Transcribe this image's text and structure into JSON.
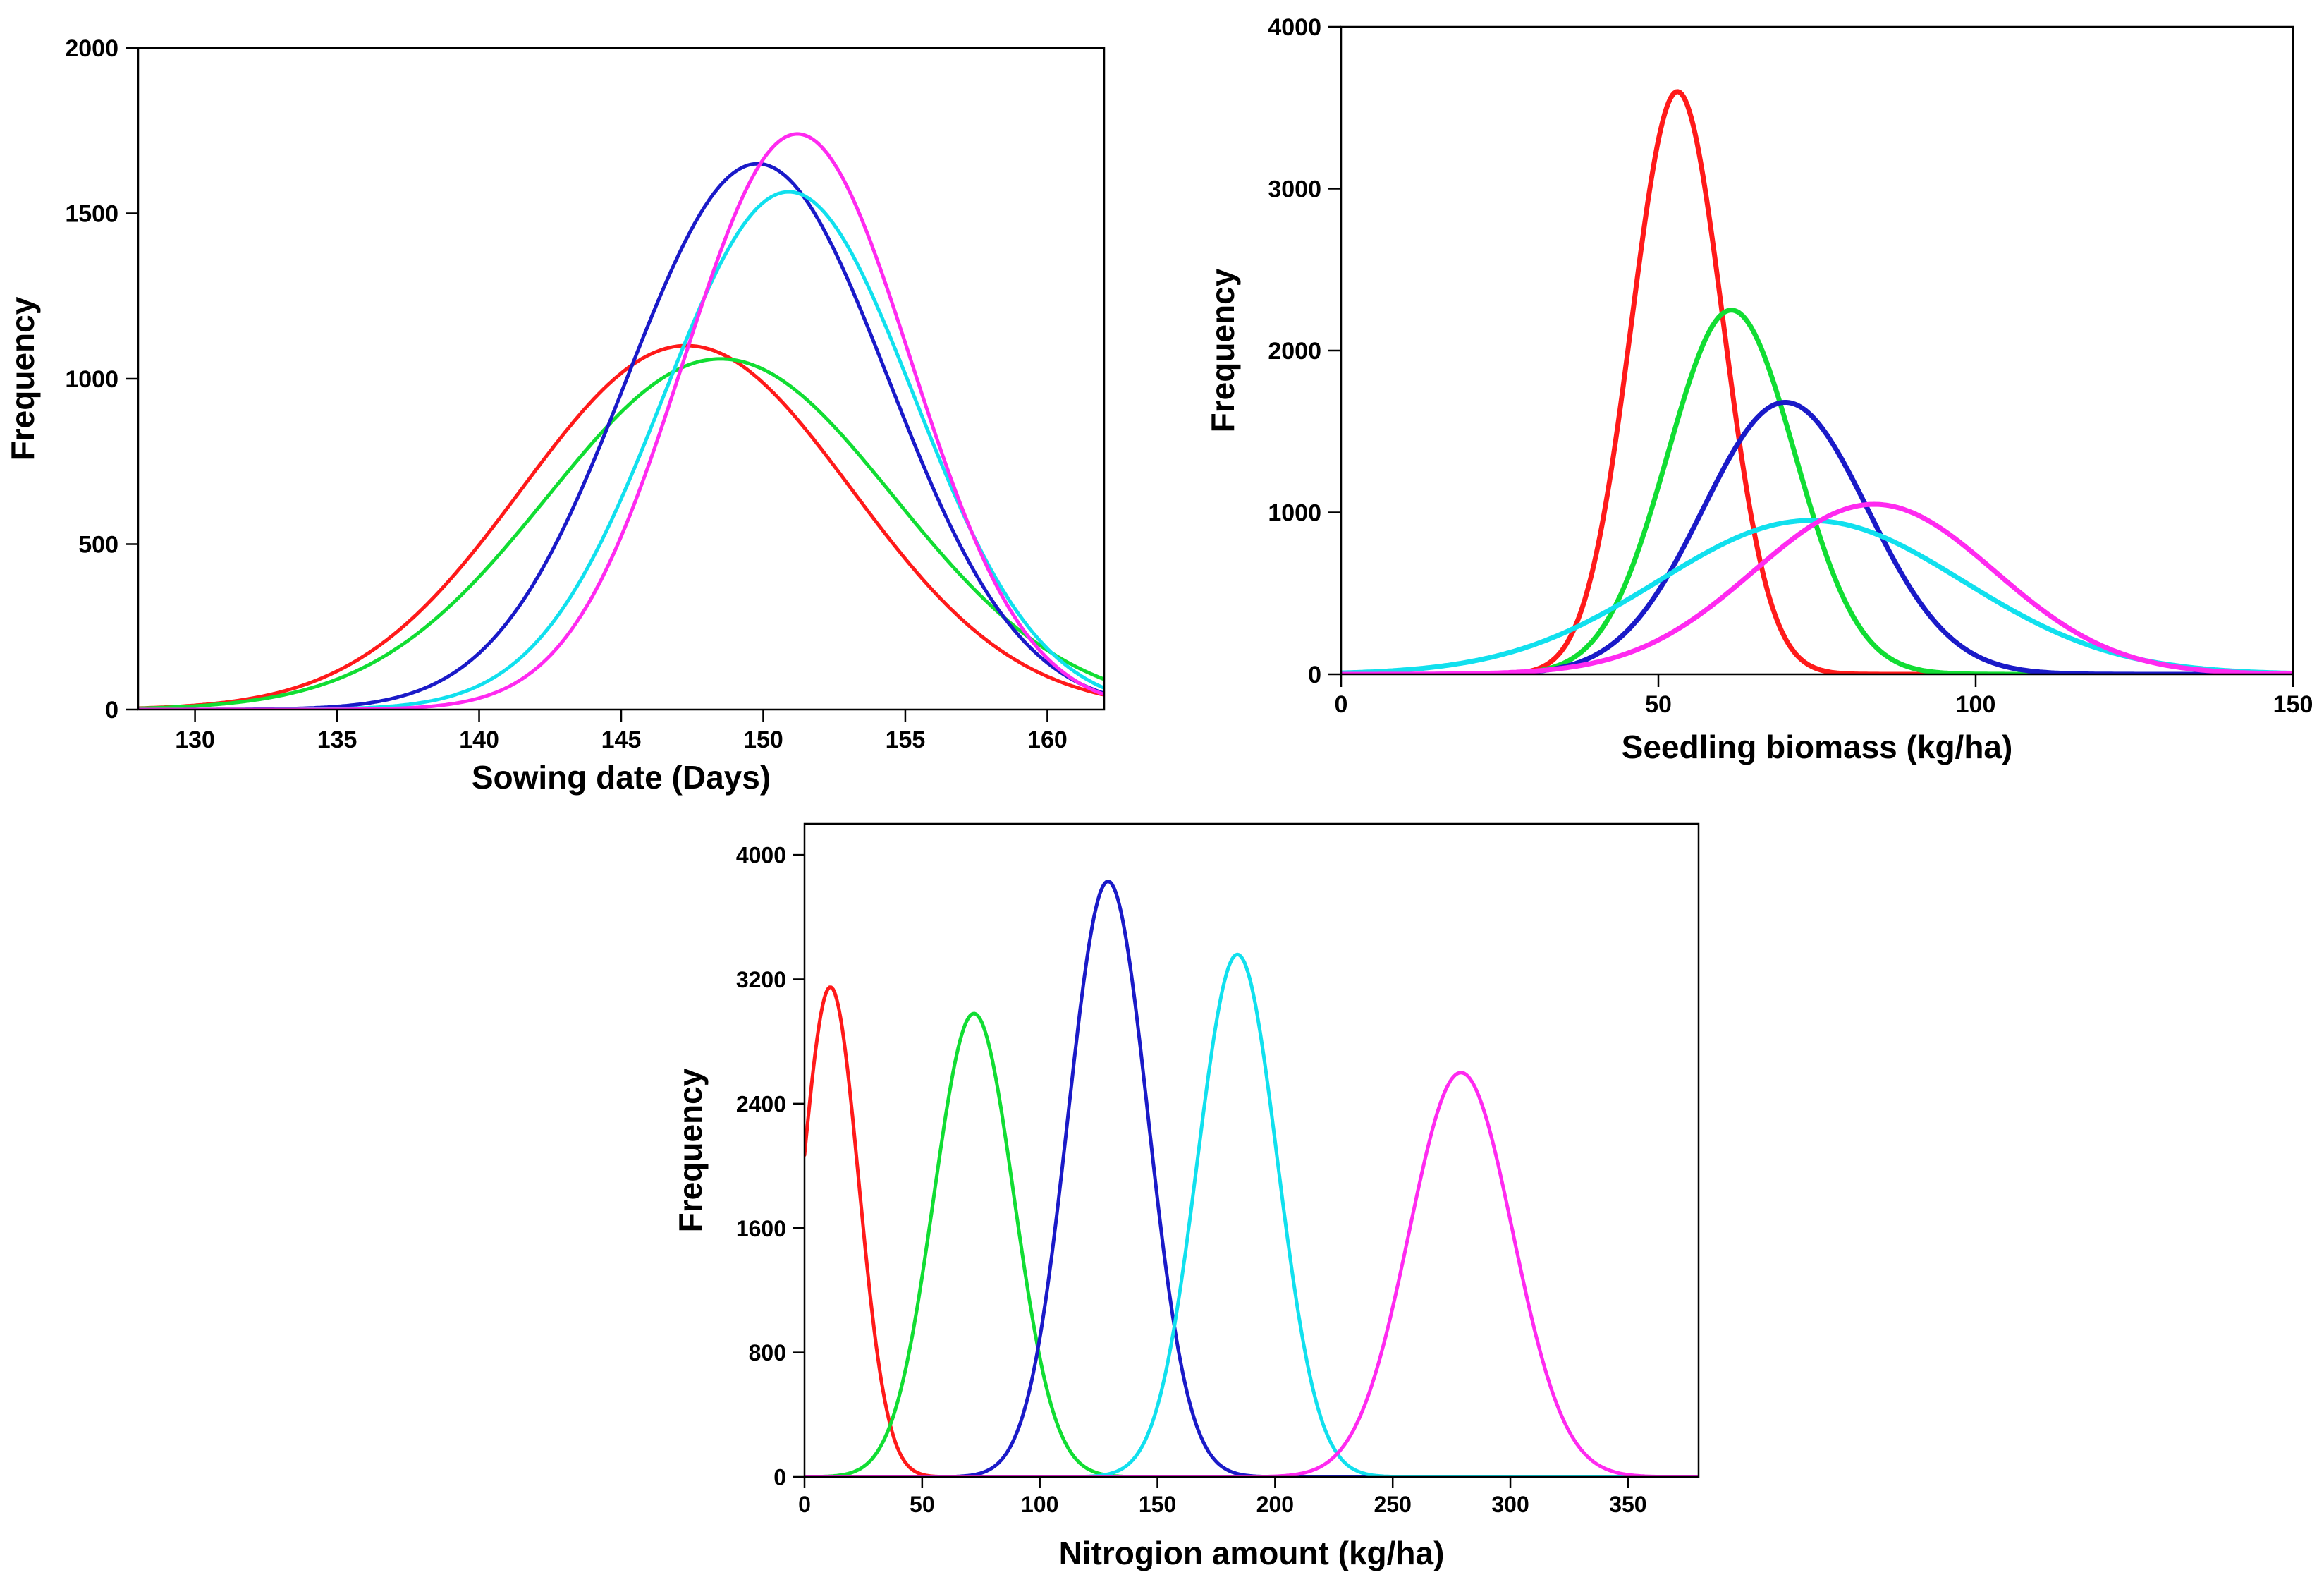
{
  "chart_data": [
    {
      "type": "line",
      "title": "",
      "xlabel": "Sowing date (Days)",
      "ylabel": "Frequency",
      "xlim": [
        128,
        162
      ],
      "ylim": [
        0,
        2000
      ],
      "x_ticks": [
        130,
        135,
        140,
        145,
        150,
        155,
        160
      ],
      "y_ticks": [
        0,
        500,
        1000,
        1500,
        2000
      ],
      "x_tick_labels": [
        "130",
        "135",
        "140",
        "145",
        "150",
        "155",
        "160"
      ],
      "y_tick_labels": [
        "0",
        "500",
        "1000",
        "1500",
        "2000"
      ],
      "grid": false,
      "series": [
        {
          "name": "red",
          "color": "#ff1a1a",
          "distribution": "normal",
          "peak": 1100,
          "mean": 147.3,
          "sd": 5.8
        },
        {
          "name": "green",
          "color": "#11dd33",
          "distribution": "normal",
          "peak": 1060,
          "mean": 148.5,
          "sd": 6.1
        },
        {
          "name": "blue",
          "color": "#1a1ac8",
          "distribution": "normal",
          "peak": 1650,
          "mean": 149.8,
          "sd": 4.6
        },
        {
          "name": "cyan",
          "color": "#11e0ee",
          "distribution": "normal",
          "peak": 1565,
          "mean": 150.9,
          "sd": 4.4
        },
        {
          "name": "magenta",
          "color": "#ff2af0",
          "distribution": "normal",
          "peak": 1740,
          "mean": 151.2,
          "sd": 4.0
        }
      ]
    },
    {
      "type": "line",
      "title": "",
      "xlabel": "Seedling biomass (kg/ha)",
      "ylabel": "Frequency",
      "xlim": [
        0,
        150
      ],
      "ylim": [
        0,
        4000
      ],
      "x_ticks": [
        0,
        50,
        100,
        150
      ],
      "y_ticks": [
        0,
        1000,
        2000,
        3000,
        4000
      ],
      "x_tick_labels": [
        "0",
        "50",
        "100",
        "150"
      ],
      "y_tick_labels": [
        "0",
        "1000",
        "2000",
        "3000",
        "4000"
      ],
      "grid": false,
      "series": [
        {
          "name": "red",
          "color": "#ff1a1a",
          "distribution": "normal",
          "peak": 3600,
          "mean": 53,
          "sd": 7.2
        },
        {
          "name": "green",
          "color": "#11dd33",
          "distribution": "normal",
          "peak": 2250,
          "mean": 61.5,
          "sd": 10
        },
        {
          "name": "blue",
          "color": "#1a1ac8",
          "distribution": "normal",
          "peak": 1680,
          "mean": 70,
          "sd": 13
        },
        {
          "name": "cyan",
          "color": "#11e0ee",
          "distribution": "normal",
          "peak": 950,
          "mean": 74,
          "sd": 24
        },
        {
          "name": "magenta",
          "color": "#ff2af0",
          "distribution": "normal",
          "peak": 1050,
          "mean": 84,
          "sd": 19
        }
      ]
    },
    {
      "type": "line",
      "title": "",
      "xlabel": "Nitrogion amount (kg/ha)",
      "ylabel": "Frequency",
      "xlim": [
        0,
        380
      ],
      "ylim": [
        0,
        4200
      ],
      "x_ticks": [
        0,
        50,
        100,
        150,
        200,
        250,
        300,
        350
      ],
      "y_ticks": [
        0,
        800,
        1600,
        2400,
        3200,
        4000
      ],
      "x_tick_labels": [
        "0",
        "50",
        "100",
        "150",
        "200",
        "250",
        "300",
        "350"
      ],
      "y_tick_labels": [
        "0",
        "800",
        "1600",
        "2400",
        "3200",
        "4000"
      ],
      "grid": false,
      "series": [
        {
          "name": "red",
          "color": "#ff1a1a",
          "distribution": "normal",
          "peak": 3150,
          "mean": 11,
          "sd": 12
        },
        {
          "name": "green",
          "color": "#11dd33",
          "distribution": "normal",
          "peak": 2980,
          "mean": 72,
          "sd": 17
        },
        {
          "name": "blue",
          "color": "#1a1ac8",
          "distribution": "normal",
          "peak": 3830,
          "mean": 129,
          "sd": 17
        },
        {
          "name": "cyan",
          "color": "#11e0ee",
          "distribution": "normal",
          "peak": 3360,
          "mean": 184,
          "sd": 17
        },
        {
          "name": "magenta",
          "color": "#ff2af0",
          "distribution": "normal",
          "peak": 2600,
          "mean": 279,
          "sd": 22
        }
      ]
    }
  ]
}
